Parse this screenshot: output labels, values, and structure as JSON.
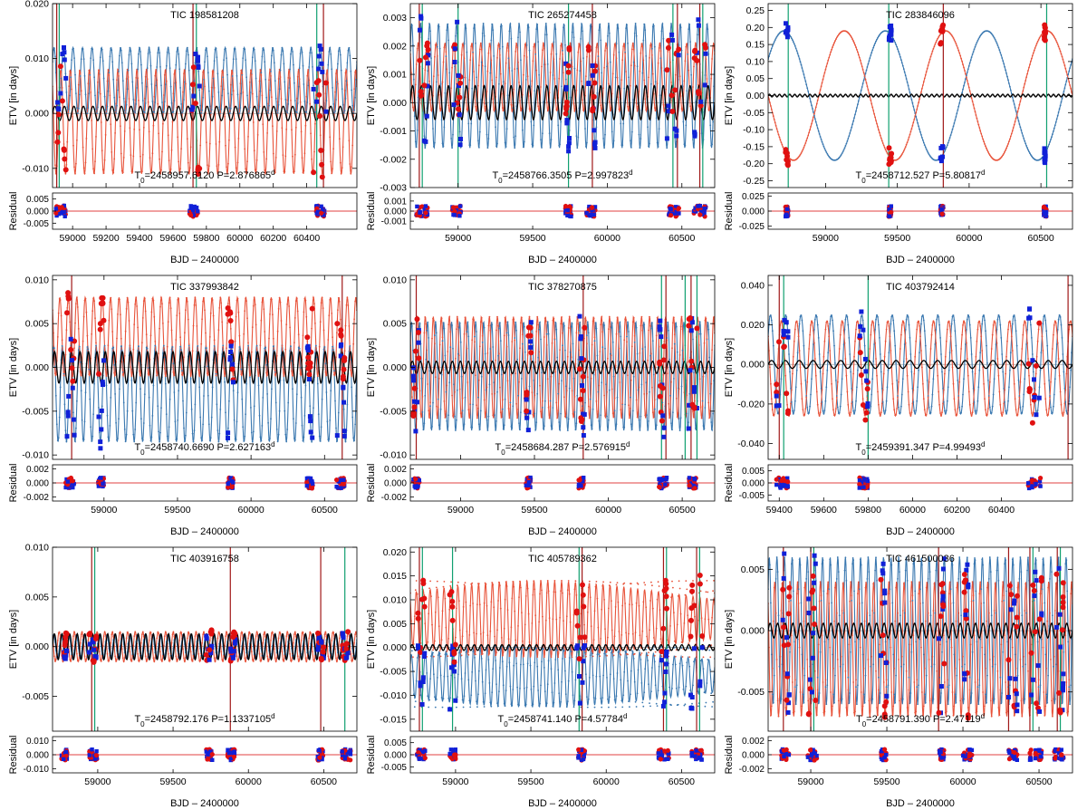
{
  "figure": {
    "colors": {
      "primary": "#e8533a",
      "secondary": "#3a78b0",
      "model": "#000000",
      "obs_primary": "#e01010",
      "obs_secondary": "#1020d8",
      "vline_red": "#a01818",
      "vline_green": "#10a070",
      "residual_line": "#e04040"
    },
    "ylabel": "ETV [in days]",
    "residual_label": "Residual",
    "xlabel": "BJD – 2400000"
  },
  "chart_data": [
    {
      "type": "line",
      "title": "TIC 198581208",
      "t0": "T",
      "t0_sub": "0",
      "t0_value": "=2458957.6120 P=2.876865",
      "p_sup": "d",
      "xlim": [
        58880,
        60700
      ],
      "xticks": [
        59000,
        59200,
        59400,
        59600,
        59800,
        60000,
        60200,
        60400
      ],
      "xtick_labels": [
        "59000",
        "59200",
        "59400",
        "59600",
        "59800",
        "60000",
        "60200",
        "60400"
      ],
      "ylim": [
        -0.0135,
        0.02
      ],
      "yticks": [
        -0.01,
        0.0,
        0.01,
        0.02
      ],
      "ytick_labels": [
        "-0.010",
        "0.000",
        "0.010",
        "0.020"
      ],
      "rlim": [
        -0.0075,
        0.0075
      ],
      "rticks": [
        -0.005,
        0.0,
        0.005
      ],
      "rtick_labels": [
        "-0.005",
        "0.000",
        "0.005"
      ],
      "period_cycles": 32,
      "prim_amp": 0.0095,
      "prim_off": -0.0015,
      "sec_amp": 0.006,
      "sec_off": 0.006,
      "model_amp": 0.0013,
      "model_cycles": 32,
      "obs": [
        [
          58900,
          58960
        ],
        [
          59700,
          59760
        ],
        [
          60440,
          60520
        ]
      ],
      "vlines_red": [
        58905,
        59720,
        60500
      ],
      "vlines_green": [
        58920,
        59740,
        60460
      ]
    },
    {
      "type": "line",
      "title": "TIC 265274458",
      "t0": "T",
      "t0_sub": "0",
      "t0_value": "=2458766.3505 P=2.997823",
      "p_sup": "d",
      "xlim": [
        58680,
        60720
      ],
      "xticks": [
        59000,
        59500,
        60000,
        60500
      ],
      "xtick_labels": [
        "59000",
        "59500",
        "60000",
        "60500"
      ],
      "ylim": [
        -0.003,
        0.0035
      ],
      "yticks": [
        -0.003,
        -0.002,
        -0.001,
        0.0,
        0.001,
        0.002,
        0.003
      ],
      "ytick_labels": [
        "-0.003",
        "-0.002",
        "-0.001",
        "0.000",
        "0.001",
        "0.002",
        "0.003"
      ],
      "rlim": [
        -0.0018,
        0.0018
      ],
      "rticks": [
        -0.001,
        0.0,
        0.001
      ],
      "rtick_labels": [
        "-0.001",
        "0.000",
        "0.001"
      ],
      "period_cycles": 34,
      "prim_amp": 0.0012,
      "prim_off": 0.0009,
      "sec_amp": 0.0022,
      "sec_off": 0.0006,
      "model_amp": 0.0006,
      "model_cycles": 34,
      "obs": [
        [
          58720,
          58800
        ],
        [
          58960,
          59020
        ],
        [
          59720,
          59760
        ],
        [
          59860,
          59920
        ],
        [
          60400,
          60480
        ],
        [
          60580,
          60660
        ]
      ],
      "vlines_red": [
        58740,
        59900,
        60470,
        60620
      ],
      "vlines_green": [
        58760,
        59000,
        59740,
        60440,
        60640
      ]
    },
    {
      "type": "line",
      "title": "TIC 283846096",
      "t0": "T",
      "t0_sub": "0",
      "t0_value": "=2458712.527 P=5.80817",
      "p_sup": "d",
      "xlim": [
        58600,
        60720
      ],
      "xticks": [
        59000,
        59500,
        60000,
        60500
      ],
      "xtick_labels": [
        "59000",
        "59500",
        "60000",
        "60500"
      ],
      "ylim": [
        -0.27,
        0.27
      ],
      "yticks": [
        -0.25,
        -0.2,
        -0.15,
        -0.1,
        -0.05,
        0.0,
        0.05,
        0.1,
        0.15,
        0.2,
        0.25
      ],
      "ytick_labels": [
        "-0.25",
        "-0.20",
        "-0.15",
        "-0.10",
        "-0.05",
        "0.00",
        "0.05",
        "0.10",
        "0.15",
        "0.20",
        "0.25"
      ],
      "rlim": [
        -0.03,
        0.03
      ],
      "rticks": [
        -0.025,
        0.0,
        0.025
      ],
      "rtick_labels": [
        "-0.025",
        "0.000",
        "0.025"
      ],
      "period_cycles": 3,
      "prim_amp": 0.19,
      "prim_off": 0.0,
      "sec_amp": 0.19,
      "sec_off": 0.0,
      "model_amp": 0.004,
      "model_cycles": 60,
      "obs": [
        [
          58720,
          58740
        ],
        [
          59440,
          59460
        ],
        [
          59800,
          59820
        ],
        [
          60520,
          60540
        ]
      ],
      "vlines_red": [
        59820
      ],
      "vlines_green": [
        58740,
        59440,
        60540
      ]
    },
    {
      "type": "line",
      "title": "TIC 337993842",
      "t0": "T",
      "t0_sub": "0",
      "t0_value": "=2458740.6690 P=2.627163",
      "p_sup": "d",
      "xlim": [
        58650,
        60720
      ],
      "xticks": [
        59000,
        59500,
        60000,
        60500
      ],
      "xtick_labels": [
        "59000",
        "59500",
        "60000",
        "60500"
      ],
      "ylim": [
        -0.0105,
        0.0105
      ],
      "yticks": [
        -0.01,
        -0.005,
        0.0,
        0.005,
        0.01
      ],
      "ytick_labels": [
        "-0.010",
        "-0.005",
        "0.000",
        "0.005",
        "0.010"
      ],
      "rlim": [
        -0.0026,
        0.0026
      ],
      "rticks": [
        -0.002,
        0.0,
        0.002
      ],
      "rtick_labels": [
        "-0.002",
        "0.000",
        "0.002"
      ],
      "period_cycles": 36,
      "prim_amp": 0.0045,
      "prim_off": 0.0035,
      "sec_amp": 0.0055,
      "sec_off": -0.003,
      "model_amp": 0.0018,
      "model_cycles": 36,
      "obs": [
        [
          58740,
          58800
        ],
        [
          58960,
          59000
        ],
        [
          59840,
          59880
        ],
        [
          60380,
          60420
        ],
        [
          60580,
          60640
        ]
      ],
      "vlines_red": [
        58780,
        60620
      ],
      "vlines_green": []
    },
    {
      "type": "line",
      "title": "TIC 378270875",
      "t0": "T",
      "t0_sub": "0",
      "t0_value": "=2458684.287 P=2.576915",
      "p_sup": "d",
      "xlim": [
        58660,
        60720
      ],
      "xticks": [
        59000,
        59500,
        60000,
        60500
      ],
      "xtick_labels": [
        "59000",
        "59500",
        "60000",
        "60500"
      ],
      "ylim": [
        -0.0105,
        0.0105
      ],
      "yticks": [
        -0.01,
        -0.005,
        0.0,
        0.005,
        0.01
      ],
      "ytick_labels": [
        "-0.010",
        "-0.005",
        "0.000",
        "0.005",
        "0.010"
      ],
      "rlim": [
        -0.0026,
        0.0026
      ],
      "rticks": [
        -0.002,
        0.0,
        0.002
      ],
      "rtick_labels": [
        "-0.002",
        "0.000",
        "0.002"
      ],
      "period_cycles": 38,
      "prim_amp": 0.0058,
      "prim_off": 0.0,
      "sec_amp": 0.0062,
      "sec_off": -0.001,
      "model_amp": 0.0007,
      "model_cycles": 38,
      "obs": [
        [
          58680,
          58720
        ],
        [
          59440,
          59480
        ],
        [
          59800,
          59840
        ],
        [
          60340,
          60400
        ],
        [
          60540,
          60600
        ]
      ],
      "vlines_red": [
        58700,
        59830,
        60390,
        60560
      ],
      "vlines_green": [
        60360,
        60520,
        60600
      ]
    },
    {
      "type": "line",
      "title": "TIC 403792414",
      "t0": "T",
      "t0_sub": "0",
      "t0_value": "=2459391.347 P=4.99493",
      "p_sup": "d",
      "xlim": [
        59350,
        60720
      ],
      "xticks": [
        59400,
        59600,
        59800,
        60000,
        60200,
        60400
      ],
      "xtick_labels": [
        "59400",
        "59600",
        "59800",
        "60000",
        "60200",
        "60400"
      ],
      "ylim": [
        -0.048,
        0.045
      ],
      "yticks": [
        -0.04,
        -0.02,
        0.0,
        0.02,
        0.04
      ],
      "ytick_labels": [
        "-0.040",
        "-0.020",
        "0.000",
        "0.020",
        "0.040"
      ],
      "rlim": [
        -0.0075,
        0.0075
      ],
      "rticks": [
        -0.005,
        0.0,
        0.005
      ],
      "rtick_labels": [
        "-0.005",
        "0.000",
        "0.005"
      ],
      "period_cycles": 20,
      "prim_amp": 0.024,
      "prim_off": -0.002,
      "sec_amp": 0.025,
      "sec_off": 0.0,
      "model_amp": 0.002,
      "model_cycles": 22,
      "obs": [
        [
          59380,
          59440
        ],
        [
          59760,
          59800
        ],
        [
          60520,
          60580
        ]
      ],
      "vlines_red": [
        59400,
        60700
      ],
      "vlines_green": [
        59420,
        59800
      ]
    },
    {
      "type": "line",
      "title": "TIC 403916758",
      "t0": "T",
      "t0_sub": "0",
      "t0_value": "=2458792.176 P=1.1337105",
      "p_sup": "d",
      "xlim": [
        58700,
        60720
      ],
      "xticks": [
        59000,
        59500,
        60000,
        60500
      ],
      "xtick_labels": [
        "59000",
        "59500",
        "60000",
        "60500"
      ],
      "ylim": [
        -0.0085,
        0.01
      ],
      "yticks": [
        -0.005,
        0.0,
        0.005,
        0.01
      ],
      "ytick_labels": [
        "-0.005",
        "0.000",
        "0.005",
        "0.010"
      ],
      "rlim": [
        -0.013,
        0.013
      ],
      "rticks": [
        -0.01,
        0.0,
        0.01
      ],
      "rtick_labels": [
        "-0.010",
        "0.000",
        "0.010"
      ],
      "period_cycles": 40,
      "prim_amp": 0.0015,
      "prim_off": 0.0,
      "sec_amp": 0.0012,
      "sec_off": 0.0,
      "model_amp": 0.0013,
      "model_cycles": 40,
      "obs": [
        [
          58760,
          58800
        ],
        [
          58940,
          59000
        ],
        [
          59720,
          59760
        ],
        [
          59860,
          59920
        ],
        [
          60460,
          60500
        ],
        [
          60620,
          60680
        ]
      ],
      "vlines_red": [
        58960,
        59880,
        60480
      ],
      "vlines_green": [
        58980,
        60640
      ]
    },
    {
      "type": "line",
      "title": "TIC 405789362",
      "t0": "T",
      "t0_sub": "0",
      "t0_value": "=2458741.140 P=4.57784",
      "p_sup": "d",
      "xlim": [
        58700,
        60720
      ],
      "xticks": [
        59000,
        59500,
        60000,
        60500
      ],
      "xtick_labels": [
        "59000",
        "59500",
        "60000",
        "60500"
      ],
      "ylim": [
        -0.0175,
        0.021
      ],
      "yticks": [
        -0.015,
        -0.01,
        -0.005,
        0.0,
        0.005,
        0.01,
        0.015,
        0.02
      ],
      "ytick_labels": [
        "-0.015",
        "-0.010",
        "-0.005",
        "0.000",
        "0.005",
        "0.010",
        "0.015",
        "0.020"
      ],
      "rlim": [
        -0.0075,
        0.0075
      ],
      "rticks": [
        -0.005,
        0.0,
        0.005
      ],
      "rtick_labels": [
        "-0.005",
        "0.000",
        "0.005"
      ],
      "period_cycles": 44,
      "prim_amp": 0.008,
      "prim_off": 0.006,
      "sec_amp": 0.0065,
      "sec_off": -0.006,
      "model_amp": 0.0006,
      "model_cycles": 44,
      "obs": [
        [
          58740,
          58800
        ],
        [
          58960,
          59000
        ],
        [
          59800,
          59860
        ],
        [
          60340,
          60420
        ],
        [
          60560,
          60640
        ]
      ],
      "vlines_red": [
        58760,
        59840,
        60380,
        60600
      ],
      "vlines_green": [
        58780,
        58980,
        59820,
        60400,
        60620
      ]
    },
    {
      "type": "line",
      "title": "TIC 461500036",
      "t0": "T",
      "t0_sub": "0",
      "t0_value": "=2458791.390 P=2.47119",
      "p_sup": "d",
      "xlim": [
        58720,
        60720
      ],
      "xticks": [
        59000,
        59500,
        60000,
        60500
      ],
      "xtick_labels": [
        "59000",
        "59500",
        "60000",
        "60500"
      ],
      "ylim": [
        -0.0082,
        0.0068
      ],
      "yticks": [
        -0.005,
        0.0,
        0.005
      ],
      "ytick_labels": [
        "-0.005",
        "0.000",
        "0.005"
      ],
      "rlim": [
        -0.0026,
        0.0026
      ],
      "rticks": [
        -0.002,
        0.0,
        0.002
      ],
      "rtick_labels": [
        "-0.002",
        "0.000",
        "0.002"
      ],
      "period_cycles": 40,
      "prim_amp": 0.0055,
      "prim_off": -0.0015,
      "sec_amp": 0.006,
      "sec_off": 0.0,
      "model_amp": 0.0006,
      "model_cycles": 40,
      "obs": [
        [
          58800,
          58860
        ],
        [
          58980,
          59040
        ],
        [
          59460,
          59500
        ],
        [
          59840,
          59880
        ],
        [
          60000,
          60060
        ],
        [
          60300,
          60360
        ],
        [
          60440,
          60520
        ],
        [
          60600,
          60660
        ]
      ],
      "vlines_red": [
        58820,
        59000,
        59840,
        60300,
        60440,
        60620
      ],
      "vlines_green": [
        59020,
        60460,
        60640
      ]
    }
  ]
}
